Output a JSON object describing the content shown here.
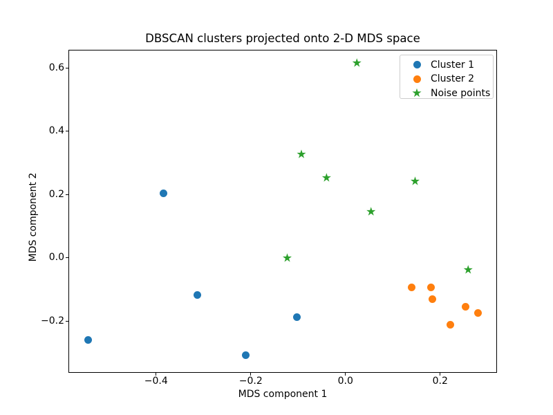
{
  "chart_data": {
    "type": "scatter",
    "title": "DBSCAN clusters projected onto 2-D MDS space",
    "xlabel": "MDS component 1",
    "ylabel": "MDS component 2",
    "xlim": [
      -0.585,
      0.32
    ],
    "ylim": [
      -0.364,
      0.658
    ],
    "grid": false,
    "x_ticks": {
      "values": [
        -0.4,
        -0.2,
        0.0,
        0.2
      ],
      "labels": [
        "−0.4",
        "−0.2",
        "0.0",
        "0.2"
      ]
    },
    "y_ticks": {
      "values": [
        -0.2,
        0.0,
        0.2,
        0.4,
        0.6
      ],
      "labels": [
        "−0.2",
        "0.0",
        "0.2",
        "0.4",
        "0.6"
      ]
    },
    "legend": {
      "position": "upper right",
      "entries": [
        {
          "label": "Cluster 1",
          "marker": "circle",
          "color": "#1f77b4"
        },
        {
          "label": "Cluster 2",
          "marker": "circle",
          "color": "#ff7f0e"
        },
        {
          "label": "Noise points",
          "marker": "star",
          "color": "#2ca02c"
        }
      ]
    },
    "series": [
      {
        "name": "Cluster 1",
        "marker": "circle",
        "color": "#1f77b4",
        "points": [
          [
            -0.384,
            0.204
          ],
          [
            -0.313,
            -0.117
          ],
          [
            -0.103,
            -0.188
          ],
          [
            -0.543,
            -0.26
          ],
          [
            -0.21,
            -0.308
          ]
        ]
      },
      {
        "name": "Cluster 2",
        "marker": "circle",
        "color": "#ff7f0e",
        "points": [
          [
            0.14,
            -0.094
          ],
          [
            0.181,
            -0.094
          ],
          [
            0.184,
            -0.132
          ],
          [
            0.253,
            -0.154
          ],
          [
            0.28,
            -0.175
          ],
          [
            0.222,
            -0.211
          ]
        ]
      },
      {
        "name": "Noise points",
        "marker": "star",
        "color": "#2ca02c",
        "points": [
          [
            0.024,
            0.613
          ],
          [
            -0.093,
            0.323
          ],
          [
            -0.04,
            0.249
          ],
          [
            0.147,
            0.238
          ],
          [
            0.054,
            0.142
          ],
          [
            -0.123,
            -0.006
          ],
          [
            0.259,
            -0.043
          ]
        ]
      }
    ]
  }
}
